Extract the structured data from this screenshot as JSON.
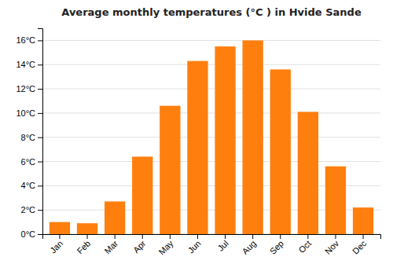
{
  "chart_data": {
    "type": "bar",
    "title": "Average monthly temperatures (°C ) in Hvide Sande",
    "categories": [
      "Jan",
      "Feb",
      "Mar",
      "Apr",
      "May",
      "Jun",
      "Jul",
      "Aug",
      "Sep",
      "Oct",
      "Nov",
      "Dec"
    ],
    "values": [
      1.0,
      0.9,
      2.7,
      6.4,
      10.6,
      14.3,
      15.5,
      16.0,
      13.6,
      10.1,
      5.6,
      2.2
    ],
    "ylim": [
      0,
      17
    ],
    "yticks": [
      {
        "value": 0,
        "label": "0°C"
      },
      {
        "value": 2,
        "label": "2°C"
      },
      {
        "value": 4,
        "label": "4°C"
      },
      {
        "value": 6,
        "label": "6°C"
      },
      {
        "value": 8,
        "label": "8°C"
      },
      {
        "value": 10,
        "label": "10°C"
      },
      {
        "value": 12,
        "label": "12°C"
      },
      {
        "value": 14,
        "label": "14°C"
      },
      {
        "value": 16,
        "label": "16°C"
      }
    ],
    "grid": true
  }
}
